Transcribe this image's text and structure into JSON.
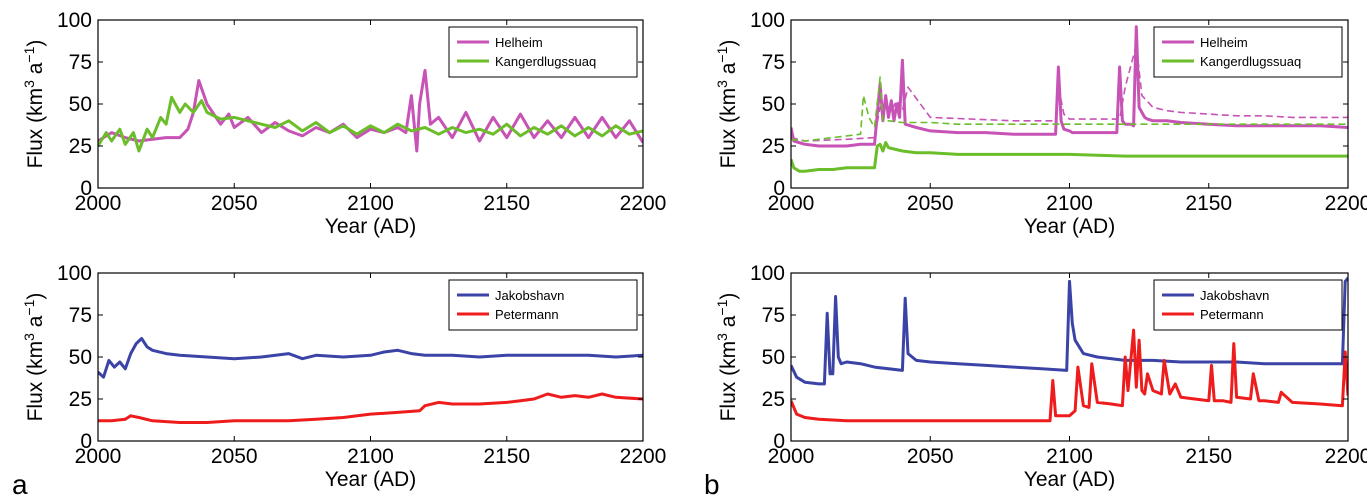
{
  "figure": {
    "panel_labels": [
      "a",
      "b"
    ]
  },
  "chart_data": [
    {
      "type": "line",
      "id": "a-top",
      "xlabel": "Year (AD)",
      "ylabel_main": "Flux (km",
      "ylabel_sup1": "3",
      "ylabel_mid": " a",
      "ylabel_sup2": "−1",
      "ylabel_end": ")",
      "xlim": [
        2000,
        2200
      ],
      "ylim": [
        0,
        100
      ],
      "xticks": [
        "2000",
        "2050",
        "2100",
        "2150",
        "2200"
      ],
      "yticks": [
        "0",
        "25",
        "50",
        "75",
        "100"
      ],
      "legend": "top-right",
      "series": [
        {
          "name": "Helheim",
          "color": "#c653b5",
          "dashed": false,
          "x": [
            2000,
            2005,
            2010,
            2015,
            2020,
            2025,
            2030,
            2033,
            2035,
            2037,
            2040,
            2045,
            2048,
            2050,
            2055,
            2060,
            2065,
            2070,
            2075,
            2080,
            2085,
            2090,
            2095,
            2100,
            2105,
            2110,
            2113,
            2115,
            2117,
            2118,
            2120,
            2122,
            2125,
            2130,
            2135,
            2140,
            2145,
            2150,
            2155,
            2160,
            2165,
            2170,
            2175,
            2180,
            2185,
            2190,
            2195,
            2200
          ],
          "y": [
            28,
            33,
            30,
            28,
            29,
            30,
            30,
            35,
            45,
            64,
            50,
            38,
            44,
            36,
            42,
            33,
            39,
            34,
            31,
            36,
            33,
            38,
            30,
            35,
            33,
            36,
            33,
            55,
            22,
            50,
            70,
            38,
            42,
            30,
            45,
            28,
            42,
            30,
            44,
            30,
            40,
            30,
            42,
            30,
            42,
            30,
            40,
            27
          ]
        },
        {
          "name": "Kangerdlugssuaq",
          "color": "#6bbd2a",
          "dashed": false,
          "x": [
            2000,
            2003,
            2005,
            2008,
            2010,
            2013,
            2015,
            2018,
            2020,
            2023,
            2025,
            2027,
            2030,
            2032,
            2035,
            2038,
            2040,
            2045,
            2050,
            2055,
            2060,
            2065,
            2070,
            2075,
            2080,
            2085,
            2090,
            2095,
            2100,
            2105,
            2110,
            2115,
            2120,
            2125,
            2130,
            2135,
            2140,
            2145,
            2150,
            2155,
            2160,
            2165,
            2170,
            2175,
            2180,
            2185,
            2190,
            2195,
            2200
          ],
          "y": [
            25,
            33,
            28,
            35,
            26,
            33,
            22,
            35,
            30,
            42,
            38,
            54,
            45,
            50,
            45,
            52,
            45,
            41,
            42,
            40,
            38,
            36,
            40,
            34,
            39,
            33,
            37,
            32,
            37,
            33,
            38,
            34,
            36,
            32,
            36,
            33,
            35,
            32,
            38,
            31,
            36,
            32,
            37,
            31,
            36,
            31,
            37,
            32,
            34
          ]
        }
      ]
    },
    {
      "type": "line",
      "id": "a-bottom",
      "xlabel": "Year (AD)",
      "ylabel_main": "Flux (km",
      "ylabel_sup1": "3",
      "ylabel_mid": " a",
      "ylabel_sup2": "−1",
      "ylabel_end": ")",
      "xlim": [
        2000,
        2200
      ],
      "ylim": [
        0,
        100
      ],
      "xticks": [
        "2000",
        "2050",
        "2100",
        "2150",
        "2200"
      ],
      "yticks": [
        "0",
        "25",
        "50",
        "75",
        "100"
      ],
      "legend": "top-right",
      "series": [
        {
          "name": "Jakobshavn",
          "color": "#3b44a6",
          "dashed": false,
          "x": [
            2000,
            2002,
            2004,
            2006,
            2008,
            2010,
            2012,
            2014,
            2016,
            2018,
            2020,
            2025,
            2030,
            2040,
            2050,
            2060,
            2070,
            2075,
            2080,
            2090,
            2100,
            2105,
            2110,
            2115,
            2120,
            2130,
            2140,
            2150,
            2160,
            2170,
            2180,
            2190,
            2200
          ],
          "y": [
            41,
            38,
            48,
            44,
            47,
            43,
            52,
            58,
            61,
            56,
            54,
            52,
            51,
            50,
            49,
            50,
            52,
            49,
            51,
            50,
            51,
            53,
            54,
            52,
            51,
            51,
            50,
            51,
            51,
            51,
            51,
            50,
            51
          ]
        },
        {
          "name": "Petermann",
          "color": "#ee1c1c",
          "dashed": false,
          "x": [
            2000,
            2005,
            2010,
            2012,
            2015,
            2020,
            2030,
            2040,
            2050,
            2060,
            2070,
            2080,
            2090,
            2100,
            2110,
            2118,
            2120,
            2125,
            2130,
            2140,
            2150,
            2155,
            2160,
            2165,
            2170,
            2175,
            2180,
            2185,
            2190,
            2200
          ],
          "y": [
            12,
            12,
            13,
            15,
            14,
            12,
            11,
            11,
            12,
            12,
            12,
            13,
            14,
            16,
            17,
            18,
            21,
            23,
            22,
            22,
            23,
            24,
            25,
            28,
            26,
            27,
            26,
            28,
            26,
            25
          ]
        }
      ]
    },
    {
      "type": "line",
      "id": "b-top",
      "xlabel": "Year (AD)",
      "ylabel_main": "Flux (km",
      "ylabel_sup1": "3",
      "ylabel_mid": " a",
      "ylabel_sup2": "−1",
      "ylabel_end": ")",
      "xlim": [
        2000,
        2200
      ],
      "ylim": [
        0,
        100
      ],
      "xticks": [
        "2000",
        "2050",
        "2100",
        "2150",
        "2200"
      ],
      "yticks": [
        "0",
        "25",
        "50",
        "75",
        "100"
      ],
      "legend": "top-right",
      "series": [
        {
          "name": "Helheim",
          "color": "#c653b5",
          "dashed": false,
          "x": [
            2000,
            2001,
            2005,
            2010,
            2015,
            2020,
            2025,
            2030,
            2031,
            2032,
            2033,
            2034,
            2035,
            2036,
            2037,
            2038,
            2039,
            2040,
            2041,
            2045,
            2050,
            2060,
            2070,
            2080,
            2090,
            2095,
            2096,
            2097,
            2098,
            2100,
            2101,
            2110,
            2117,
            2118,
            2119,
            2120,
            2122,
            2123,
            2124,
            2125,
            2126,
            2127,
            2128,
            2130,
            2135,
            2140,
            2150,
            2160,
            2170,
            2180,
            2190,
            2200
          ],
          "y": [
            36,
            28,
            26,
            25,
            25,
            25,
            26,
            26,
            44,
            62,
            40,
            55,
            42,
            52,
            40,
            50,
            42,
            76,
            38,
            36,
            34,
            33,
            33,
            32,
            32,
            32,
            72,
            40,
            35,
            34,
            33,
            33,
            33,
            72,
            40,
            38,
            38,
            37,
            96,
            48,
            45,
            42,
            41,
            40,
            40,
            39,
            38,
            37,
            37,
            37,
            37,
            36
          ]
        },
        {
          "name": "Kangerdlugssuaq",
          "color": "#6bbd2a",
          "dashed": false,
          "x": [
            2000,
            2001,
            2003,
            2005,
            2010,
            2015,
            2020,
            2025,
            2030,
            2031,
            2032,
            2033,
            2034,
            2035,
            2040,
            2045,
            2050,
            2060,
            2080,
            2100,
            2120,
            2140,
            2160,
            2180,
            2200
          ],
          "y": [
            17,
            12,
            10,
            10,
            11,
            11,
            12,
            12,
            12,
            25,
            26,
            22,
            27,
            24,
            22,
            21,
            21,
            20,
            20,
            20,
            19,
            19,
            19,
            19,
            19
          ]
        },
        {
          "name": "",
          "color": "#c653b5",
          "dashed": true,
          "x": [
            2000,
            2005,
            2020,
            2030,
            2032,
            2034,
            2036,
            2038,
            2040,
            2042,
            2050,
            2080,
            2095,
            2096,
            2098,
            2100,
            2110,
            2118,
            2120,
            2124,
            2126,
            2130,
            2135,
            2140,
            2150,
            2160,
            2170,
            2180,
            2200
          ],
          "y": [
            30,
            28,
            29,
            30,
            48,
            50,
            46,
            52,
            46,
            60,
            42,
            40,
            40,
            60,
            44,
            41,
            41,
            41,
            60,
            85,
            55,
            48,
            46,
            45,
            44,
            43,
            43,
            42,
            42
          ]
        },
        {
          "name": "",
          "color": "#6bbd2a",
          "dashed": true,
          "x": [
            2000,
            2005,
            2010,
            2015,
            2020,
            2025,
            2026,
            2028,
            2030,
            2032,
            2033,
            2035,
            2040,
            2050,
            2060,
            2080,
            2100,
            2120,
            2140,
            2160,
            2180,
            2200
          ],
          "y": [
            29,
            28,
            29,
            30,
            31,
            32,
            55,
            42,
            36,
            66,
            40,
            40,
            39,
            39,
            38,
            38,
            38,
            38,
            38,
            38,
            38,
            38
          ]
        }
      ]
    },
    {
      "type": "line",
      "id": "b-bottom",
      "xlabel": "Year (AD)",
      "ylabel_main": "Flux (km",
      "ylabel_sup1": "3",
      "ylabel_mid": " a",
      "ylabel_sup2": "−1",
      "ylabel_end": ")",
      "xlim": [
        2000,
        2200
      ],
      "ylim": [
        0,
        100
      ],
      "xticks": [
        "2000",
        "2050",
        "2100",
        "2150",
        "2200"
      ],
      "yticks": [
        "0",
        "25",
        "50",
        "75",
        "100"
      ],
      "legend": "top-right",
      "series": [
        {
          "name": "Jakobshavn",
          "color": "#3b44a6",
          "dashed": false,
          "x": [
            2000,
            2002,
            2005,
            2010,
            2012,
            2013,
            2014,
            2015,
            2016,
            2017,
            2018,
            2020,
            2025,
            2030,
            2040,
            2041,
            2042,
            2045,
            2050,
            2060,
            2070,
            2080,
            2090,
            2099,
            2100,
            2101,
            2102,
            2105,
            2110,
            2120,
            2130,
            2140,
            2150,
            2160,
            2170,
            2180,
            2190,
            2198,
            2199,
            2200
          ],
          "y": [
            45,
            38,
            35,
            34,
            34,
            76,
            40,
            40,
            86,
            50,
            46,
            47,
            46,
            44,
            42,
            85,
            52,
            48,
            47,
            46,
            45,
            44,
            43,
            42,
            95,
            70,
            60,
            52,
            50,
            48,
            48,
            47,
            47,
            47,
            46,
            46,
            46,
            46,
            95,
            97
          ]
        },
        {
          "name": "Petermann",
          "color": "#ee1c1c",
          "dashed": false,
          "x": [
            2000,
            2002,
            2005,
            2010,
            2020,
            2050,
            2080,
            2093,
            2094,
            2095,
            2100,
            2102,
            2103,
            2105,
            2107,
            2108,
            2110,
            2115,
            2119,
            2120,
            2121,
            2123,
            2124,
            2125,
            2126,
            2127,
            2128,
            2130,
            2133,
            2134,
            2136,
            2138,
            2140,
            2145,
            2150,
            2151,
            2152,
            2155,
            2158,
            2159,
            2160,
            2165,
            2166,
            2168,
            2170,
            2175,
            2176,
            2180,
            2190,
            2198,
            2199,
            2200
          ],
          "y": [
            24,
            16,
            14,
            13,
            12,
            12,
            12,
            12,
            36,
            15,
            15,
            18,
            44,
            21,
            20,
            46,
            23,
            22,
            21,
            50,
            30,
            66,
            32,
            60,
            30,
            28,
            40,
            30,
            28,
            48,
            28,
            34,
            26,
            25,
            24,
            45,
            24,
            24,
            23,
            58,
            26,
            25,
            40,
            24,
            24,
            23,
            29,
            23,
            22,
            21,
            53,
            27
          ]
        }
      ]
    }
  ]
}
